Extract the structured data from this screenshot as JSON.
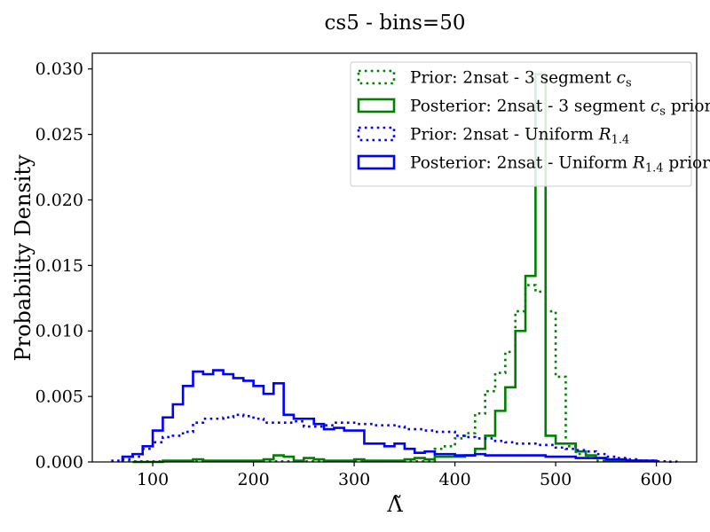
{
  "chart_data": {
    "type": "step-histogram",
    "title": "cs5 - bins=50",
    "xlabel": "Λ̃",
    "ylabel": "Probability Density",
    "xlim": [
      40,
      640
    ],
    "ylim": [
      0,
      0.0312
    ],
    "xticks": [
      100,
      200,
      300,
      400,
      500,
      600
    ],
    "yticks": [
      0.0,
      0.005,
      0.01,
      0.015,
      0.02,
      0.025,
      0.03
    ],
    "ytick_labels": [
      "0.000",
      "0.005",
      "0.010",
      "0.015",
      "0.020",
      "0.025",
      "0.030"
    ],
    "legend_position": "upper right",
    "series": [
      {
        "name": "Prior: 2nsat - 3 segment c_s",
        "legend_main": "Prior: 2nsat - 3 segment ",
        "legend_sym": "c",
        "legend_sub": "s",
        "legend_tail": "",
        "color": "#008000",
        "linestyle": "dotted",
        "edges": [
          70,
          380,
          390,
          400,
          410,
          420,
          430,
          440,
          450,
          460,
          470,
          480,
          490,
          500,
          510,
          520,
          530,
          540,
          600
        ],
        "values": [
          5e-05,
          0.001,
          0.0012,
          0.0018,
          0.0022,
          0.0037,
          0.0054,
          0.0068,
          0.0084,
          0.0115,
          0.0135,
          0.013,
          0.0115,
          0.0065,
          0.0012,
          0.0006,
          0.0003,
          0.0001
        ]
      },
      {
        "name": "Posterior: 2nsat - 3 segment c_s prior",
        "legend_main": "Posterior: 2nsat - 3 segment ",
        "legend_sym": "c",
        "legend_sub": "s",
        "legend_tail": " prior",
        "color": "#008000",
        "linestyle": "solid",
        "edges": [
          80,
          110,
          120,
          140,
          150,
          200,
          210,
          220,
          230,
          240,
          250,
          260,
          270,
          280,
          290,
          300,
          310,
          320,
          330,
          340,
          350,
          360,
          370,
          380,
          390,
          400,
          410,
          420,
          430,
          440,
          450,
          460,
          470,
          480,
          490,
          500,
          510,
          520,
          530,
          540,
          550,
          590
        ],
        "values": [
          0.0,
          0.0001,
          0.0001,
          0.0002,
          0.0001,
          0.0001,
          0.0002,
          0.0005,
          0.0004,
          0.0001,
          0.0003,
          0.0002,
          0.0001,
          0.0001,
          0.0001,
          0.0002,
          0.0001,
          0.0001,
          0.0001,
          0.0001,
          0.0002,
          0.0003,
          0.0002,
          0.0004,
          0.0004,
          0.0004,
          0.0005,
          0.001,
          0.002,
          0.0039,
          0.0057,
          0.01,
          0.0142,
          0.0296,
          0.002,
          0.0014,
          0.0014,
          0.0008,
          0.0005,
          0.0003,
          0.0001
        ]
      },
      {
        "name": "Prior: 2nsat - Uniform R_1.4",
        "legend_main": "Prior: 2nsat - Uniform ",
        "legend_sym": "R",
        "legend_sub": "1.4",
        "legend_tail": "",
        "color": "#0000ff",
        "linestyle": "dotted",
        "edges": [
          60,
          70,
          80,
          90,
          100,
          110,
          120,
          130,
          140,
          150,
          160,
          170,
          180,
          190,
          200,
          210,
          220,
          230,
          240,
          250,
          260,
          270,
          280,
          290,
          300,
          310,
          320,
          330,
          340,
          350,
          360,
          370,
          380,
          390,
          400,
          410,
          420,
          430,
          440,
          450,
          460,
          470,
          480,
          490,
          500,
          510,
          520,
          530,
          540,
          550,
          560,
          570,
          580,
          590,
          600,
          610,
          620
        ],
        "values": [
          0.0001,
          0.0002,
          0.0004,
          0.001,
          0.0015,
          0.0019,
          0.002,
          0.0023,
          0.003,
          0.0033,
          0.0033,
          0.0034,
          0.0036,
          0.0035,
          0.0033,
          0.003,
          0.003,
          0.003,
          0.0031,
          0.0027,
          0.0027,
          0.0028,
          0.003,
          0.003,
          0.0029,
          0.0029,
          0.0028,
          0.0028,
          0.0027,
          0.0025,
          0.0025,
          0.0024,
          0.0023,
          0.0023,
          0.002,
          0.0019,
          0.0018,
          0.0018,
          0.0016,
          0.0015,
          0.0014,
          0.0014,
          0.0013,
          0.0013,
          0.0011,
          0.001,
          0.0009,
          0.0008,
          0.0006,
          0.0004,
          0.0003,
          0.0002,
          0.0001,
          0.0001,
          5e-05,
          2e-05
        ]
      },
      {
        "name": "Posterior: 2nsat - Uniform R_1.4 prior",
        "legend_main": "Posterior: 2nsat - Uniform ",
        "legend_sym": "R",
        "legend_sub": "1.4",
        "legend_tail": " prior",
        "color": "#0000ff",
        "linestyle": "solid",
        "edges": [
          70,
          80,
          90,
          100,
          110,
          120,
          130,
          140,
          150,
          160,
          170,
          180,
          190,
          200,
          210,
          220,
          230,
          240,
          250,
          260,
          270,
          280,
          290,
          300,
          310,
          320,
          330,
          340,
          350,
          360,
          370,
          380,
          390,
          400,
          410,
          420,
          430,
          440,
          450,
          460,
          470,
          480,
          490,
          500,
          510,
          520,
          530,
          540,
          550,
          560,
          570,
          580,
          590,
          600
        ],
        "values": [
          0.0004,
          0.0006,
          0.0012,
          0.0024,
          0.0034,
          0.0044,
          0.0058,
          0.0069,
          0.0067,
          0.007,
          0.0067,
          0.0064,
          0.0062,
          0.0058,
          0.0052,
          0.006,
          0.0036,
          0.0033,
          0.0033,
          0.0029,
          0.0025,
          0.0026,
          0.0024,
          0.0024,
          0.0014,
          0.0014,
          0.0012,
          0.0014,
          0.001,
          0.0007,
          0.0008,
          0.0006,
          0.0006,
          0.0005,
          0.0005,
          0.0006,
          0.0005,
          0.0005,
          0.0005,
          0.0005,
          0.0005,
          0.0005,
          0.0004,
          0.0004,
          0.0004,
          0.0003,
          0.0003,
          0.0003,
          0.0002,
          0.0002,
          0.0001,
          0.0001,
          0.0001
        ]
      }
    ]
  }
}
